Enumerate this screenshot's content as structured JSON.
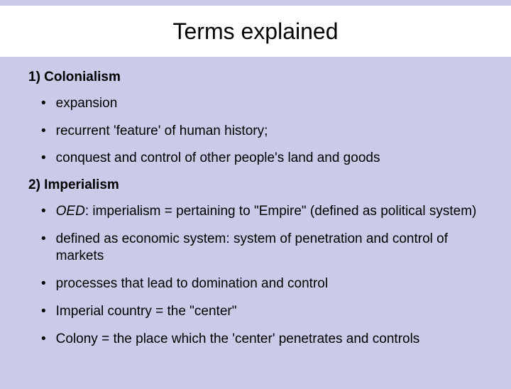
{
  "slide": {
    "title": "Terms explained",
    "background_color": "#c9cbe8",
    "title_bar_color": "#ffffff",
    "text_color": "#000000",
    "title_fontsize": 32,
    "body_fontsize": 19,
    "section1": {
      "heading": "1) Colonialism",
      "bullets": [
        "expansion",
        "recurrent 'feature' of human history;",
        "conquest and control of other people's land and goods"
      ]
    },
    "section2": {
      "heading": "2) Imperialism",
      "bullet1_prefix_italic": "OED",
      "bullet1_rest": ": imperialism = pertaining to \"Empire\" (defined as political system)",
      "bullets_rest": [
        "defined as economic system: system of penetration and control of markets",
        "processes that lead to domination and control",
        "Imperial country = the \"center\"",
        "Colony = the place which the 'center' penetrates and controls"
      ]
    }
  }
}
